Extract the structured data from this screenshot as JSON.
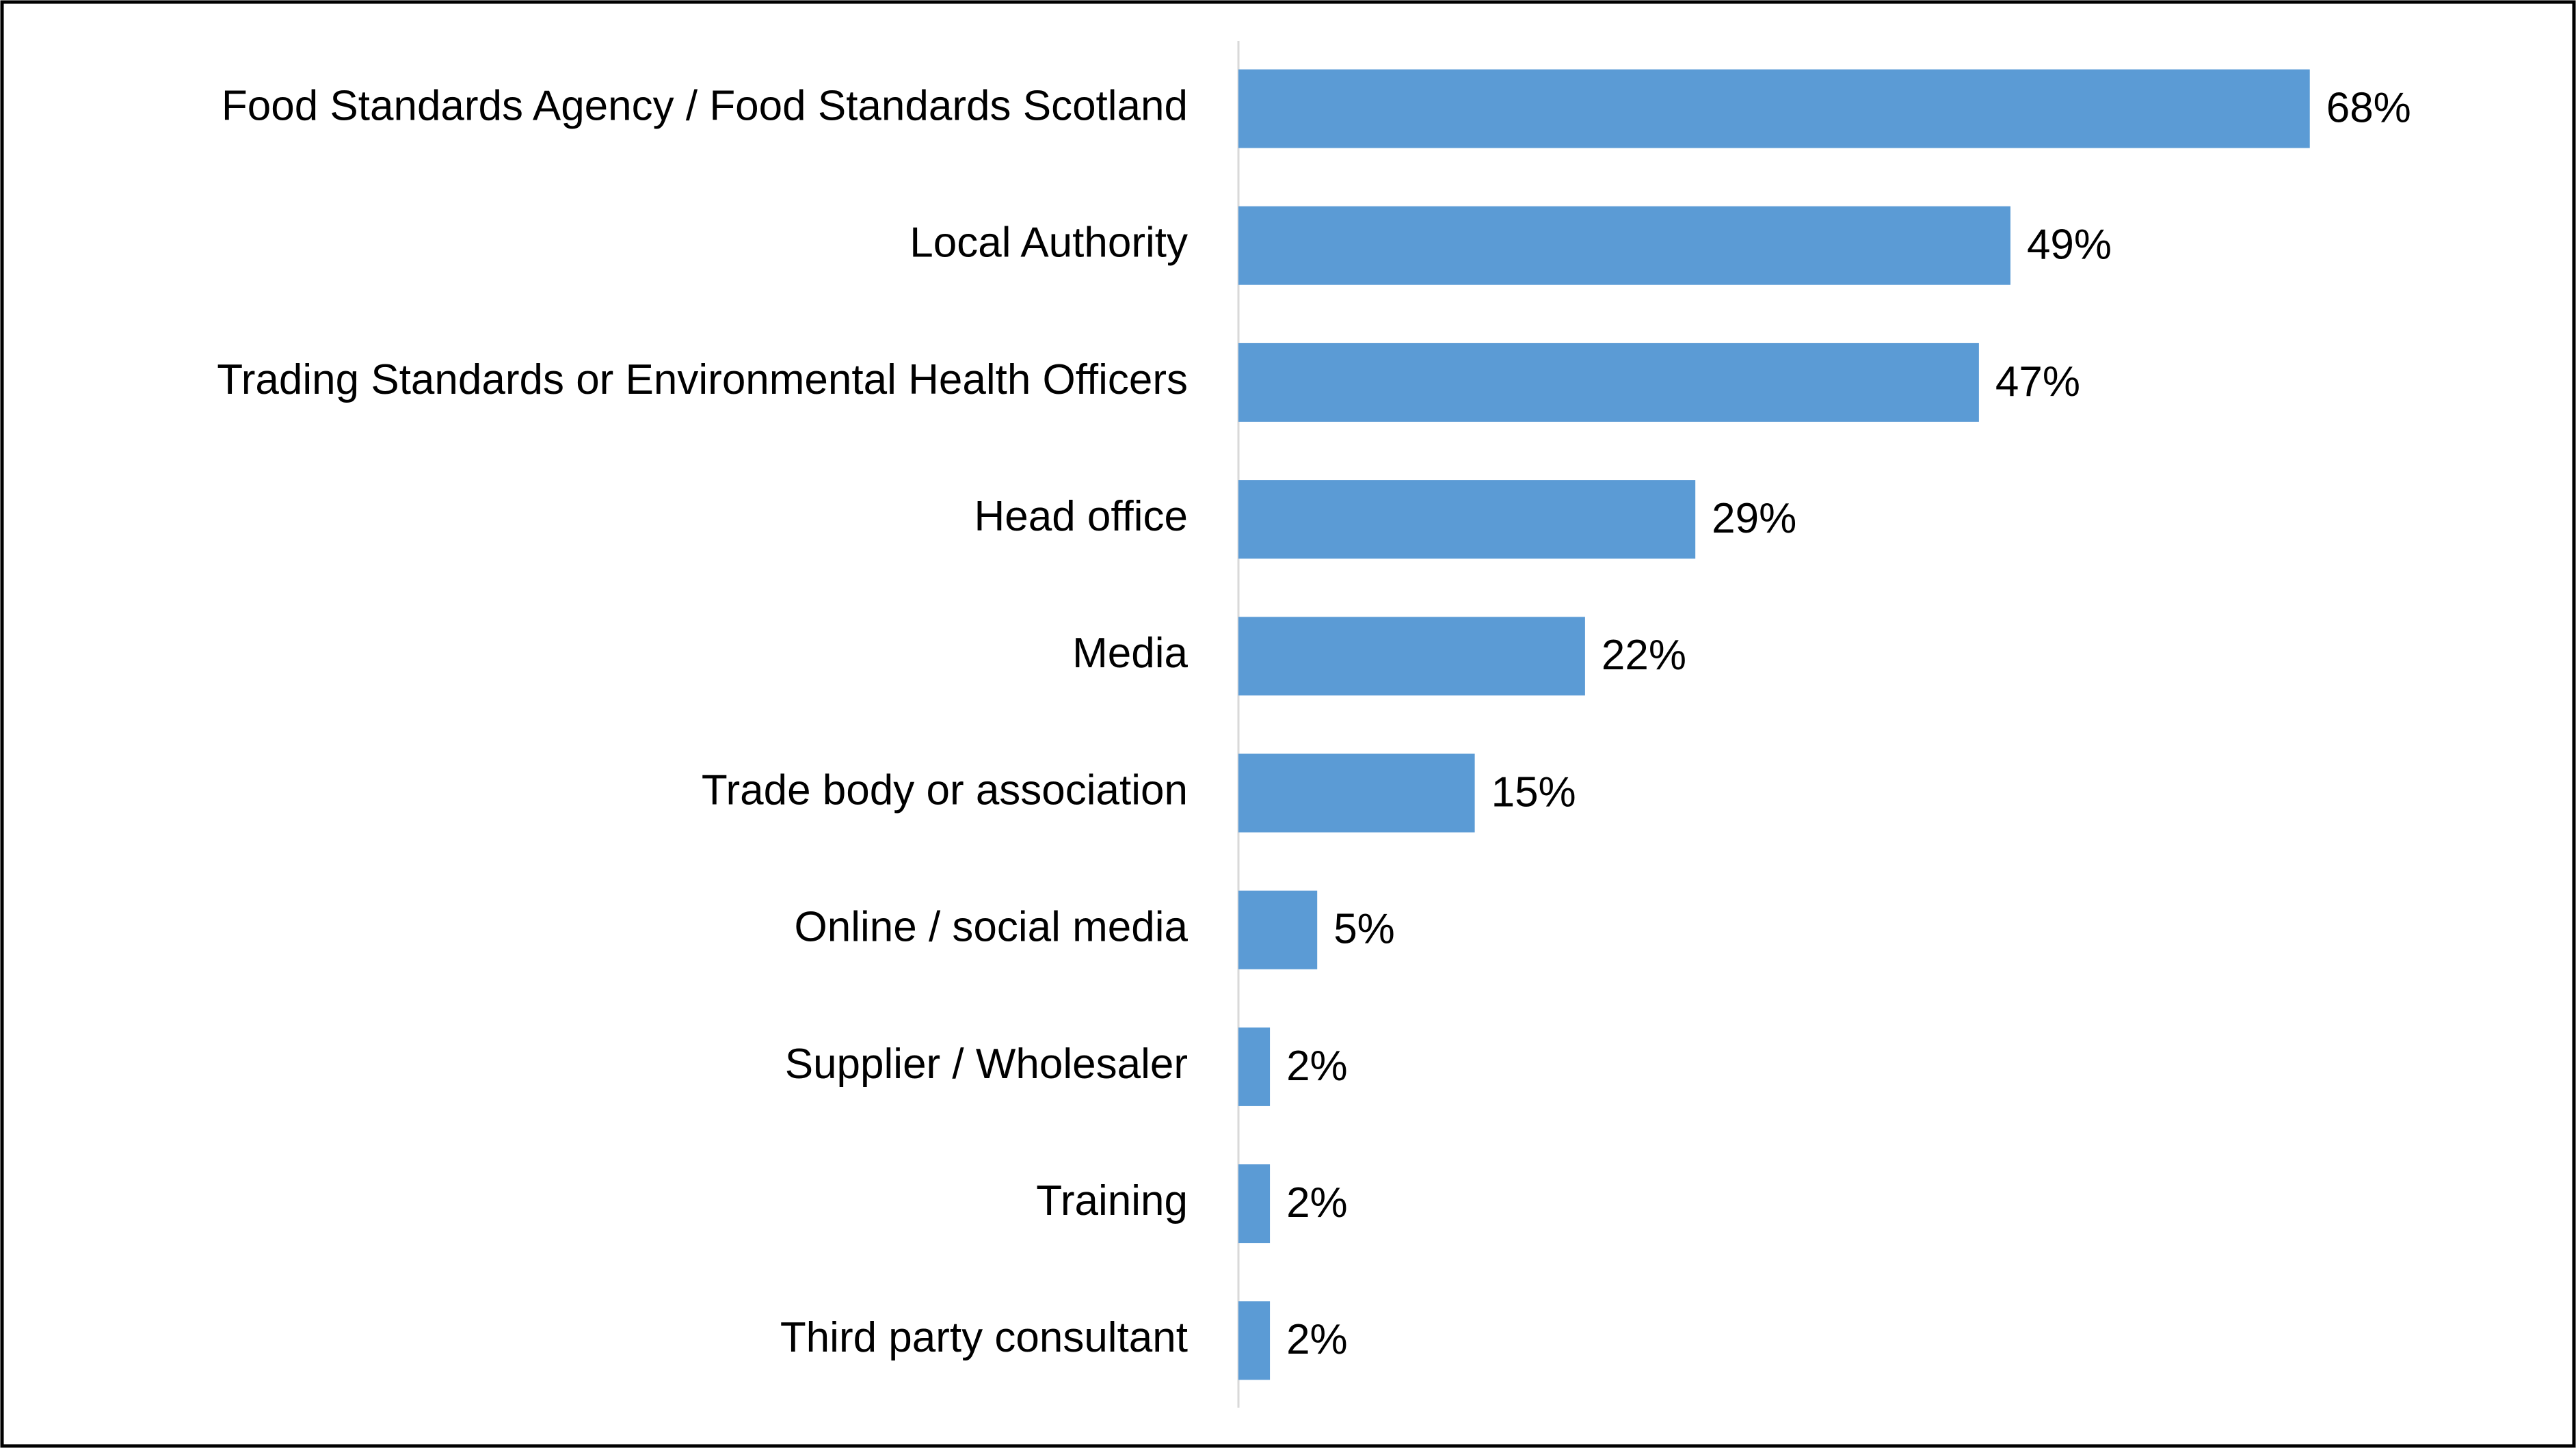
{
  "chart_data": {
    "type": "bar",
    "orientation": "horizontal",
    "categories": [
      "Food Standards Agency / Food Standards Scotland",
      "Local Authority",
      "Trading Standards or Environmental Health Officers",
      "Head office",
      "Media",
      "Trade body or association",
      "Online / social media",
      "Supplier / Wholesaler",
      "Training",
      "Third party consultant"
    ],
    "values": [
      68,
      49,
      47,
      29,
      22,
      15,
      5,
      2,
      2,
      2
    ],
    "value_labels": [
      "68%",
      "49%",
      "47%",
      "29%",
      "22%",
      "15%",
      "5%",
      "2%",
      "2%",
      "2%"
    ],
    "color": "#5b9bd5"
  }
}
